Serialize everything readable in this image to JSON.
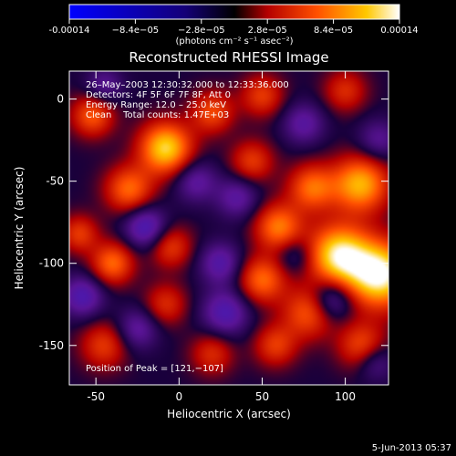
{
  "chart_data": {
    "type": "heatmap",
    "title": "Reconstructed RHESSI Image",
    "xlabel": "Heliocentric X (arcsec)",
    "ylabel": "Heliocentric Y (arcsec)",
    "xlim": [
      -66,
      126
    ],
    "ylim": [
      -174,
      17
    ],
    "x_ticks": [
      -50,
      0,
      50,
      100
    ],
    "y_ticks": [
      0,
      -50,
      -100,
      -150
    ],
    "colorbar": {
      "min": -0.00014,
      "max": 0.00014,
      "tick_values": [
        -0.00014,
        -8.4e-05,
        -2.8e-05,
        2.8e-05,
        8.4e-05,
        0.00014
      ],
      "tick_labels": [
        "-0.00014",
        "−8.4e−05",
        "−2.8e−05",
        "2.8e−05",
        "8.4e−05",
        "0.00014"
      ],
      "unit_label": "(photons cm⁻² s⁻¹ asec⁻²)"
    },
    "annotations": [
      "26–May–2003 12:30:32.000 to 12:33:36.000",
      "Detectors: 4F 5F 6F 7F 8F, Att 0",
      "Energy Range: 12.0 – 25.0 keV",
      "Clean    Total counts: 1.47E+03"
    ],
    "peak_label": "Position of Peak = [121,−107]",
    "peak": [
      121,
      -107
    ],
    "sources": [
      {
        "x": 121,
        "y": -107,
        "amp": 1.0,
        "w": 14
      },
      {
        "x": 96,
        "y": -95,
        "amp": 0.9,
        "w": 13
      },
      {
        "x": 109,
        "y": -52,
        "amp": 0.75,
        "w": 12
      },
      {
        "x": 80,
        "y": -54,
        "amp": 0.55,
        "w": 10
      },
      {
        "x": 60,
        "y": -78,
        "amp": 0.6,
        "w": 10
      },
      {
        "x": 50,
        "y": -110,
        "amp": 0.55,
        "w": 10
      },
      {
        "x": 78,
        "y": -130,
        "amp": 0.5,
        "w": 11
      },
      {
        "x": 110,
        "y": -150,
        "amp": 0.45,
        "w": 10
      },
      {
        "x": 58,
        "y": -150,
        "amp": 0.4,
        "w": 9
      },
      {
        "x": -8,
        "y": -30,
        "amp": 0.85,
        "w": 11
      },
      {
        "x": -30,
        "y": -55,
        "amp": 0.55,
        "w": 10
      },
      {
        "x": -52,
        "y": -10,
        "amp": 0.5,
        "w": 9
      },
      {
        "x": 20,
        "y": -8,
        "amp": 0.45,
        "w": 9
      },
      {
        "x": 50,
        "y": 2,
        "amp": 0.4,
        "w": 9
      },
      {
        "x": 100,
        "y": 5,
        "amp": 0.35,
        "w": 9
      },
      {
        "x": 44,
        "y": -38,
        "amp": 0.4,
        "w": 9
      },
      {
        "x": -40,
        "y": -100,
        "amp": 0.55,
        "w": 9
      },
      {
        "x": -5,
        "y": -90,
        "amp": 0.4,
        "w": 9
      },
      {
        "x": -60,
        "y": -82,
        "amp": 0.4,
        "w": 8
      },
      {
        "x": -8,
        "y": -125,
        "amp": 0.35,
        "w": 9
      },
      {
        "x": -45,
        "y": -150,
        "amp": 0.4,
        "w": 10
      },
      {
        "x": 20,
        "y": -155,
        "amp": 0.35,
        "w": 9
      },
      {
        "x": -20,
        "y": -78,
        "amp": -0.5,
        "w": 9
      },
      {
        "x": -58,
        "y": -120,
        "amp": -0.45,
        "w": 9
      },
      {
        "x": -25,
        "y": -140,
        "amp": -0.35,
        "w": 9
      },
      {
        "x": 28,
        "y": -130,
        "amp": -0.45,
        "w": 10
      },
      {
        "x": 25,
        "y": -100,
        "amp": -0.4,
        "w": 9
      },
      {
        "x": 35,
        "y": -60,
        "amp": -0.35,
        "w": 9
      },
      {
        "x": 10,
        "y": -50,
        "amp": -0.35,
        "w": 9
      },
      {
        "x": 75,
        "y": -15,
        "amp": -0.35,
        "w": 9
      },
      {
        "x": 120,
        "y": -25,
        "amp": -0.3,
        "w": 9
      },
      {
        "x": 92,
        "y": -122,
        "amp": -0.45,
        "w": 9
      },
      {
        "x": 118,
        "y": -160,
        "amp": -0.3,
        "w": 8
      },
      {
        "x": -45,
        "y": 8,
        "amp": -0.3,
        "w": 8
      },
      {
        "x": 70,
        "y": -95,
        "amp": -0.25,
        "w": 8
      }
    ]
  },
  "footer": {
    "date": "5-Jun-2013 05:37"
  }
}
